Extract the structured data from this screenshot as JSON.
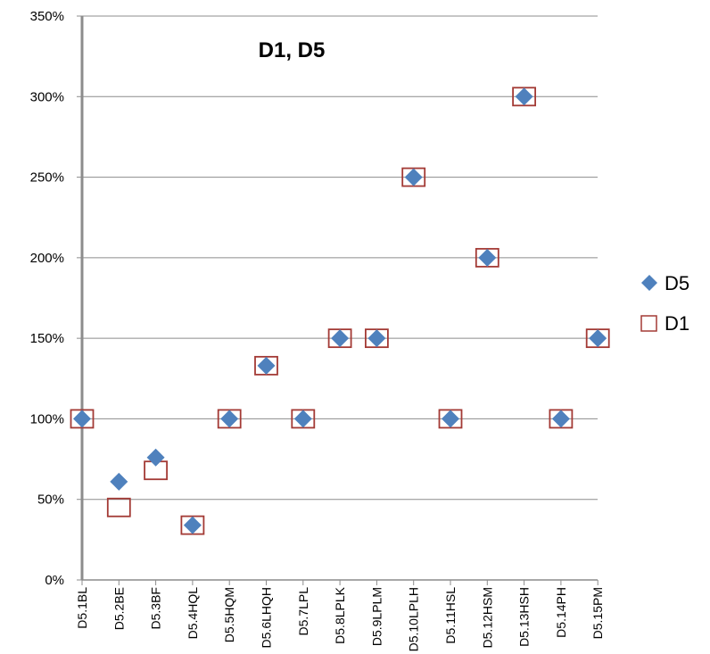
{
  "chart_data": {
    "type": "scatter",
    "title": "D1, D5",
    "xlabel": "",
    "ylabel": "",
    "ylim": [
      0,
      3.5
    ],
    "y_ticks": [
      "0%",
      "50%",
      "100%",
      "150%",
      "200%",
      "250%",
      "300%",
      "350%"
    ],
    "y_tick_values": [
      0,
      0.5,
      1.0,
      1.5,
      2.0,
      2.5,
      3.0,
      3.5
    ],
    "grid": true,
    "legend_position": "right",
    "categories": [
      "D5.1BL",
      "D5.2BE",
      "D5.3BF",
      "D5.4HQL",
      "D5.5HQM",
      "D5.6LHQH",
      "D5.7LPL",
      "D5.8LPLK",
      "D5.9LPLM",
      "D5.10LPLH",
      "D5.11HSL",
      "D5.12HSM",
      "D5.13HSH",
      "D5.14PH",
      "D5.15PM"
    ],
    "series": [
      {
        "name": "D5",
        "marker": "diamond",
        "color": "#4F81BD",
        "values": [
          1.0,
          0.61,
          0.76,
          0.34,
          1.0,
          1.33,
          1.0,
          1.5,
          1.5,
          2.5,
          1.0,
          2.0,
          3.0,
          1.0,
          1.5
        ]
      },
      {
        "name": "D1",
        "marker": "square-open",
        "color": "#A33A35",
        "values": [
          1.0,
          0.45,
          0.68,
          0.34,
          1.0,
          1.33,
          1.0,
          1.5,
          1.5,
          2.5,
          1.0,
          2.0,
          3.0,
          1.0,
          1.5
        ]
      }
    ]
  }
}
